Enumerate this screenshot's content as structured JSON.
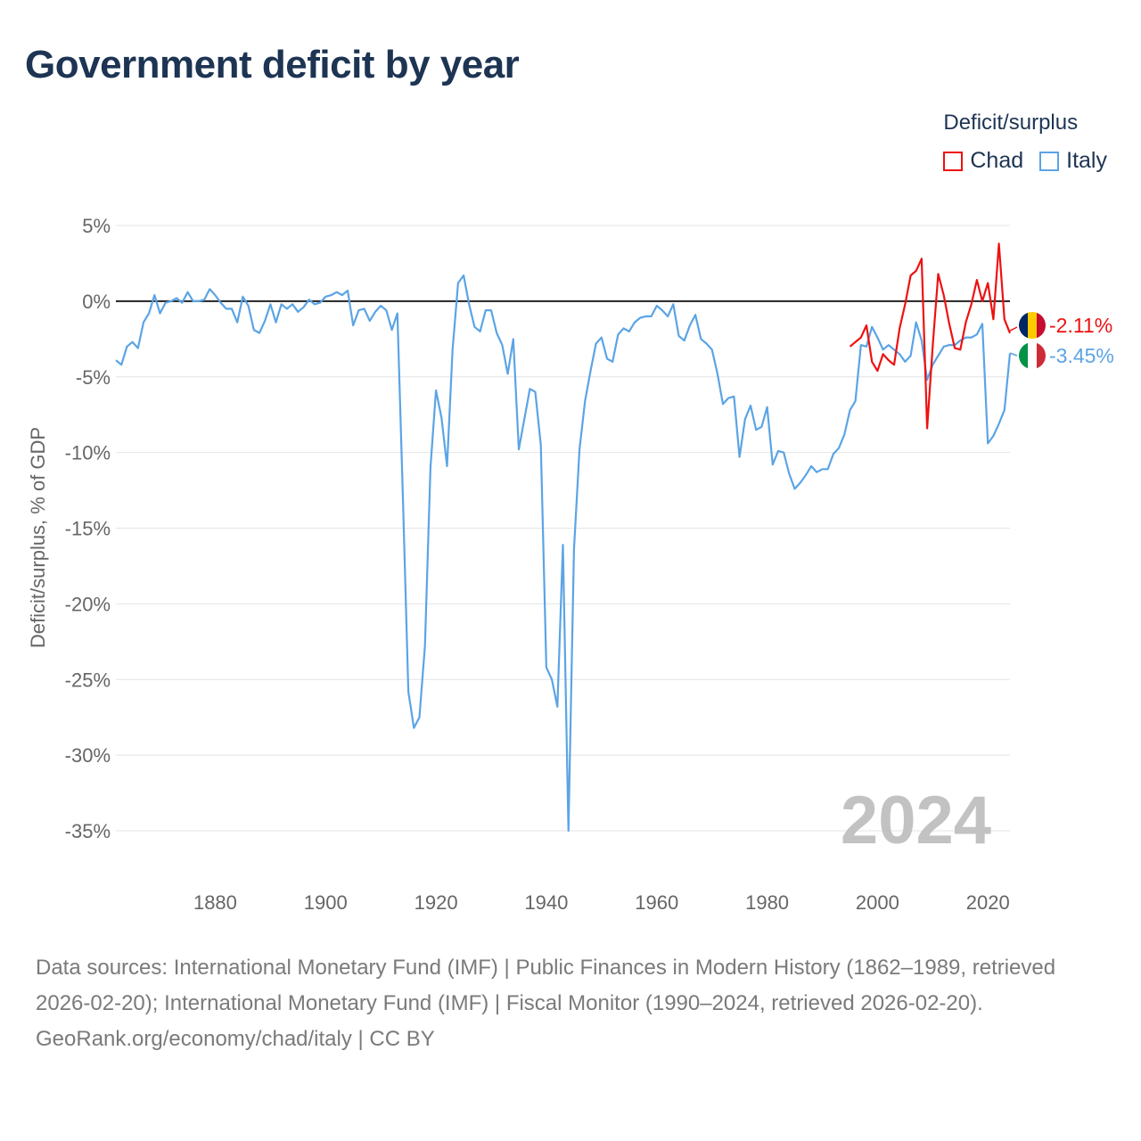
{
  "title": "Government deficit by year",
  "legend": {
    "title": "Deficit/surplus",
    "items": [
      {
        "name": "Chad",
        "color": "#ee1111"
      },
      {
        "name": "Italy",
        "color": "#5ba4e5"
      }
    ]
  },
  "chart_data": {
    "type": "line",
    "title": "Government deficit by year",
    "xlabel": "",
    "ylabel": "Deficit/surplus, % of GDP",
    "xlim": [
      1862,
      2024
    ],
    "ylim": [
      -35,
      5
    ],
    "x_ticks": [
      1880,
      1900,
      1920,
      1940,
      1960,
      1980,
      2000,
      2020
    ],
    "x_tick_labels": [
      "1880",
      "1900",
      "1920",
      "1940",
      "1960",
      "1980",
      "2000",
      "2020"
    ],
    "y_ticks": [
      5,
      0,
      -5,
      -10,
      -15,
      -20,
      -25,
      -30,
      -35
    ],
    "y_tick_labels": [
      "5%",
      "0%",
      "-5%",
      "-10%",
      "-15%",
      "-20%",
      "-25%",
      "-30%",
      "-35%"
    ],
    "grid": true,
    "zero_line": true,
    "year_watermark": "2024",
    "series": [
      {
        "name": "Italy",
        "color": "#5ba4e5",
        "end_label": "-3.45%",
        "x": [
          1862,
          1863,
          1864,
          1865,
          1866,
          1867,
          1868,
          1869,
          1870,
          1871,
          1872,
          1873,
          1874,
          1875,
          1876,
          1877,
          1878,
          1879,
          1880,
          1881,
          1882,
          1883,
          1884,
          1885,
          1886,
          1887,
          1888,
          1889,
          1890,
          1891,
          1892,
          1893,
          1894,
          1895,
          1896,
          1897,
          1898,
          1899,
          1900,
          1901,
          1902,
          1903,
          1904,
          1905,
          1906,
          1907,
          1908,
          1909,
          1910,
          1911,
          1912,
          1913,
          1914,
          1915,
          1916,
          1917,
          1918,
          1919,
          1920,
          1921,
          1922,
          1923,
          1924,
          1925,
          1926,
          1927,
          1928,
          1929,
          1930,
          1931,
          1932,
          1933,
          1934,
          1935,
          1936,
          1937,
          1938,
          1939,
          1940,
          1941,
          1942,
          1943,
          1944,
          1945,
          1946,
          1947,
          1948,
          1949,
          1950,
          1951,
          1952,
          1953,
          1954,
          1955,
          1956,
          1957,
          1958,
          1959,
          1960,
          1961,
          1962,
          1963,
          1964,
          1965,
          1966,
          1967,
          1968,
          1969,
          1970,
          1971,
          1972,
          1973,
          1974,
          1975,
          1976,
          1977,
          1978,
          1979,
          1980,
          1981,
          1982,
          1983,
          1984,
          1985,
          1986,
          1987,
          1988,
          1989,
          1990,
          1991,
          1992,
          1993,
          1994,
          1995,
          1996,
          1997,
          1998,
          1999,
          2000,
          2001,
          2002,
          2003,
          2004,
          2005,
          2006,
          2007,
          2008,
          2009,
          2010,
          2011,
          2012,
          2013,
          2014,
          2015,
          2016,
          2017,
          2018,
          2019,
          2020,
          2021,
          2022,
          2023,
          2024
        ],
        "values": [
          -3.9,
          -4.2,
          -3.0,
          -2.7,
          -3.1,
          -1.4,
          -0.8,
          0.4,
          -0.8,
          -0.1,
          0.0,
          0.2,
          -0.1,
          0.6,
          0.0,
          0.0,
          0.1,
          0.8,
          0.4,
          -0.1,
          -0.5,
          -0.5,
          -1.4,
          0.3,
          -0.3,
          -1.9,
          -2.1,
          -1.3,
          -0.2,
          -1.4,
          -0.2,
          -0.5,
          -0.2,
          -0.7,
          -0.4,
          0.1,
          -0.2,
          -0.1,
          0.3,
          0.4,
          0.6,
          0.4,
          0.7,
          -1.6,
          -0.6,
          -0.5,
          -1.3,
          -0.7,
          -0.3,
          -0.6,
          -1.9,
          -0.8,
          -13.0,
          -25.8,
          -28.2,
          -27.5,
          -22.8,
          -11.0,
          -5.9,
          -7.7,
          -10.9,
          -3.2,
          1.2,
          1.7,
          -0.2,
          -1.7,
          -2.0,
          -0.6,
          -0.6,
          -2.1,
          -2.9,
          -4.8,
          -2.5,
          -9.8,
          -7.8,
          -5.8,
          -6.0,
          -9.5,
          -24.2,
          -25.0,
          -26.8,
          -16.1,
          -35.0,
          -16.4,
          -9.8,
          -6.6,
          -4.6,
          -2.8,
          -2.4,
          -3.8,
          -4.0,
          -2.2,
          -1.8,
          -2.0,
          -1.4,
          -1.1,
          -1.0,
          -1.0,
          -0.3,
          -0.6,
          -1.0,
          -0.2,
          -2.3,
          -2.6,
          -1.6,
          -0.9,
          -2.5,
          -2.8,
          -3.2,
          -4.8,
          -6.8,
          -6.4,
          -6.3,
          -10.3,
          -7.8,
          -6.9,
          -8.5,
          -8.3,
          -7.0,
          -10.8,
          -9.9,
          -10.0,
          -11.4,
          -12.4,
          -12.0,
          -11.5,
          -10.9,
          -11.3,
          -11.1,
          -11.1,
          -10.1,
          -9.7,
          -8.8,
          -7.2,
          -6.6,
          -2.9,
          -3.0,
          -1.7,
          -2.4,
          -3.2,
          -2.9,
          -3.2,
          -3.5,
          -4.0,
          -3.6,
          -1.4,
          -2.6,
          -5.2,
          -4.2,
          -3.6,
          -3.0,
          -2.9,
          -2.9,
          -2.6,
          -2.4,
          -2.4,
          -2.2,
          -1.5,
          -9.4,
          -8.9,
          -8.1,
          -7.2,
          -3.45
        ]
      },
      {
        "name": "Chad",
        "color": "#ee1111",
        "end_label": "-2.11%",
        "x": [
          1995,
          1996,
          1997,
          1998,
          1999,
          2000,
          2001,
          2002,
          2003,
          2004,
          2005,
          2006,
          2007,
          2008,
          2009,
          2010,
          2011,
          2012,
          2013,
          2014,
          2015,
          2016,
          2017,
          2018,
          2019,
          2020,
          2021,
          2022,
          2023,
          2024
        ],
        "values": [
          -3.0,
          -2.7,
          -2.4,
          -1.6,
          -4.0,
          -4.6,
          -3.5,
          -3.9,
          -4.2,
          -1.8,
          -0.2,
          1.7,
          2.0,
          2.8,
          -8.4,
          -3.0,
          1.8,
          0.4,
          -1.5,
          -3.1,
          -3.2,
          -1.4,
          -0.2,
          1.4,
          0.0,
          1.2,
          -1.2,
          3.8,
          -1.2,
          -2.11
        ]
      }
    ]
  },
  "footer": {
    "sources": "Data sources: International Monetary Fund (IMF) | Public Finances in Modern History (1862–1989, retrieved 2026-02-20); International Monetary Fund (IMF) | Fiscal Monitor (1990–2024, retrieved 2026-02-20).",
    "credit": "GeoRank.org/economy/chad/italy | CC BY"
  }
}
